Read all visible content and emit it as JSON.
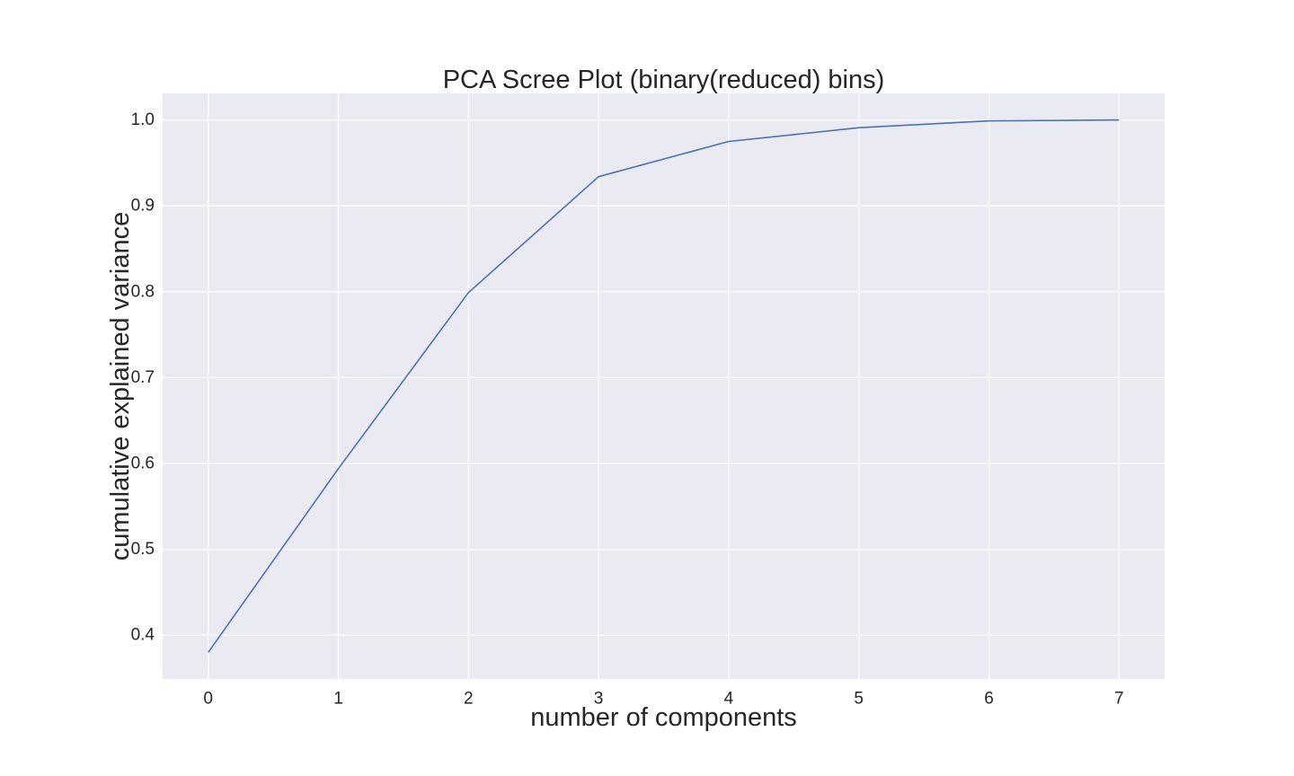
{
  "chart_data": {
    "type": "line",
    "title": "PCA Scree Plot (binary(reduced) bins)",
    "xlabel": "number of components",
    "ylabel": "cumulative explained variance",
    "x": [
      0,
      1,
      2,
      3,
      4,
      5,
      6,
      7
    ],
    "series": [
      {
        "values": [
          0.38,
          0.594,
          0.799,
          0.934,
          0.975,
          0.991,
          0.999,
          1.0
        ],
        "color": "#4c72b0"
      }
    ],
    "xlim": [
      -0.35,
      7.35
    ],
    "ylim": [
      0.349,
      1.031
    ],
    "xticks": [
      0,
      1,
      2,
      3,
      4,
      5,
      6,
      7
    ],
    "xtick_labels": [
      "0",
      "1",
      "2",
      "3",
      "4",
      "5",
      "6",
      "7"
    ],
    "yticks": [
      0.4,
      0.5,
      0.6,
      0.7,
      0.8,
      0.9,
      1.0
    ],
    "ytick_labels": [
      "0.4",
      "0.5",
      "0.6",
      "0.7",
      "0.8",
      "0.9",
      "1.0"
    ],
    "grid": true,
    "legend": "none",
    "colors": {
      "plot_background": "#eaeaf2",
      "grid": "#ffffff",
      "text": "#262626"
    }
  }
}
